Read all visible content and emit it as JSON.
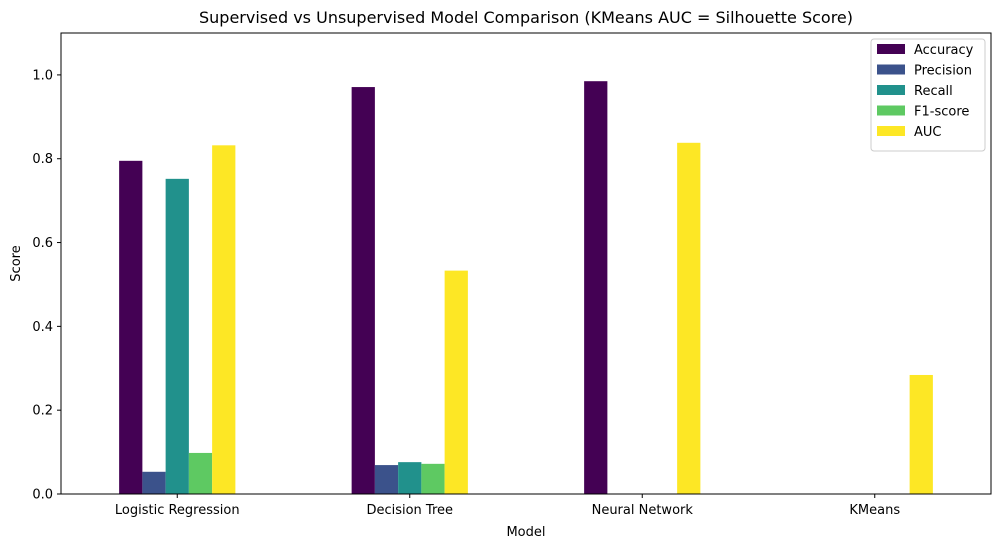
{
  "chart_data": {
    "type": "bar",
    "title": "Supervised vs Unsupervised Model Comparison (KMeans AUC = Silhouette Score)",
    "xlabel": "Model",
    "ylabel": "Score",
    "ylim": [
      0,
      1.1
    ],
    "yticks": [
      "0.0",
      "0.2",
      "0.4",
      "0.6",
      "0.8",
      "1.0"
    ],
    "ytick_values": [
      0,
      0.2,
      0.4,
      0.6,
      0.8,
      1.0
    ],
    "categories": [
      "Logistic Regression",
      "Decision Tree",
      "Neural Network",
      "KMeans"
    ],
    "series": [
      {
        "name": "Accuracy",
        "color": "#440154",
        "values": [
          0.795,
          0.971,
          0.985,
          0
        ]
      },
      {
        "name": "Precision",
        "color": "#3b528b",
        "values": [
          0.053,
          0.069,
          0,
          0
        ]
      },
      {
        "name": "Recall",
        "color": "#21918c",
        "values": [
          0.752,
          0.076,
          0,
          0
        ]
      },
      {
        "name": "F1-score",
        "color": "#5ec962",
        "values": [
          0.098,
          0.072,
          0,
          0
        ]
      },
      {
        "name": "AUC",
        "color": "#fde725",
        "values": [
          0.832,
          0.533,
          0.838,
          0.284
        ]
      }
    ],
    "legend": "top-right",
    "grid": false
  }
}
